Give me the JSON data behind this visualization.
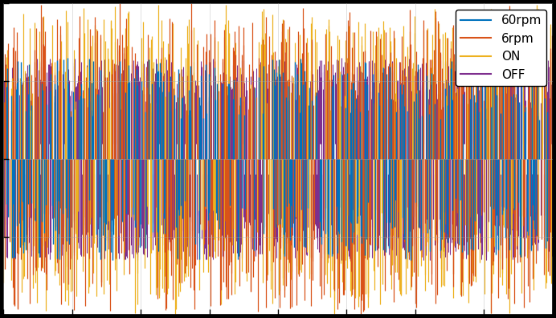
{
  "colors": {
    "60rpm": "#0072BD",
    "6rpm": "#D95319",
    "ON": "#EDB120",
    "OFF": "#7E2F8E"
  },
  "legend_labels": [
    "60rpm",
    "6rpm",
    "ON",
    "OFF"
  ],
  "ylim": [
    -1.0,
    1.0
  ],
  "xlim": [
    0,
    1
  ],
  "background": "#ffffff",
  "fig_facecolor": "#000000",
  "n_lines": 500,
  "seed": 42
}
